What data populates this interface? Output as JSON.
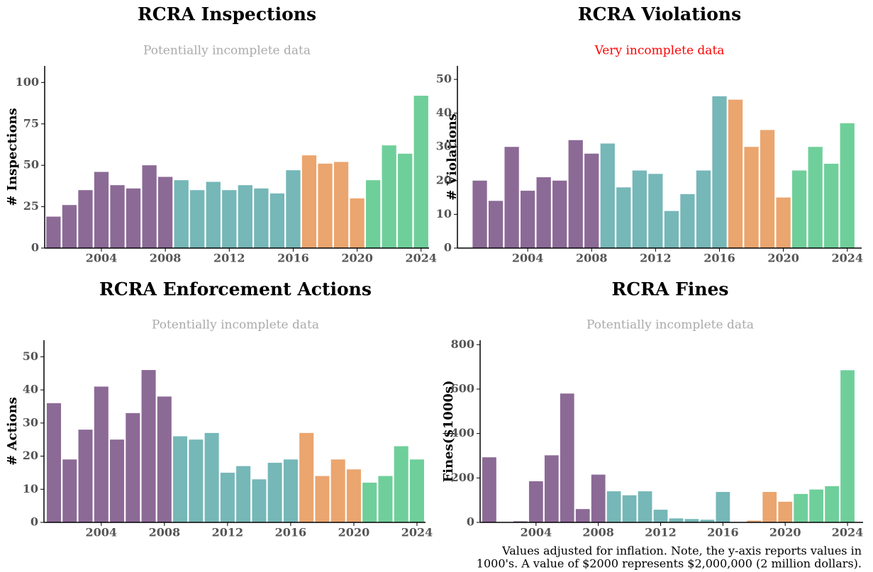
{
  "chart_data": [
    {
      "type": "bar",
      "title": "RCRA Inspections",
      "subtitle": "Potentially incomplete data",
      "subtitle_color": "#aaaaaa",
      "ylabel": "# Inspections",
      "x": [
        2001,
        2002,
        2003,
        2004,
        2005,
        2006,
        2007,
        2008,
        2009,
        2010,
        2011,
        2012,
        2013,
        2014,
        2015,
        2016,
        2017,
        2018,
        2019,
        2020,
        2021,
        2022,
        2023,
        2024
      ],
      "values": [
        19,
        26,
        35,
        46,
        38,
        36,
        50,
        43,
        41,
        35,
        40,
        35,
        38,
        36,
        33,
        47,
        56,
        51,
        52,
        30,
        41,
        62,
        57,
        92
      ],
      "colors": [
        "#8c6a96",
        "#8c6a96",
        "#8c6a96",
        "#8c6a96",
        "#8c6a96",
        "#8c6a96",
        "#8c6a96",
        "#8c6a96",
        "#76b7b8",
        "#76b7b8",
        "#76b7b8",
        "#76b7b8",
        "#76b7b8",
        "#76b7b8",
        "#76b7b8",
        "#76b7b8",
        "#eba56e",
        "#eba56e",
        "#eba56e",
        "#eba56e",
        "#6fcf9a",
        "#6fcf9a",
        "#6fcf9a",
        "#6fcf9a"
      ],
      "xlim": [
        2000.45,
        2024.5
      ],
      "xticks": [
        2004,
        2008,
        2012,
        2016,
        2020,
        2024
      ],
      "ylim": [
        0,
        110
      ],
      "yticks": [
        0,
        25,
        50,
        75,
        100
      ]
    },
    {
      "type": "bar",
      "title": "RCRA Violations",
      "subtitle": "Very incomplete data",
      "subtitle_color": "#ff0000",
      "ylabel": "# Violations",
      "x": [
        2001,
        2002,
        2003,
        2004,
        2005,
        2006,
        2007,
        2008,
        2009,
        2010,
        2011,
        2012,
        2013,
        2014,
        2015,
        2016,
        2017,
        2018,
        2019,
        2020,
        2021,
        2022,
        2023,
        2024
      ],
      "values": [
        20,
        14,
        30,
        17,
        21,
        20,
        32,
        28,
        31,
        18,
        23,
        22,
        11,
        16,
        23,
        45,
        44,
        30,
        35,
        15,
        23,
        30,
        25,
        37
      ],
      "colors": [
        "#8c6a96",
        "#8c6a96",
        "#8c6a96",
        "#8c6a96",
        "#8c6a96",
        "#8c6a96",
        "#8c6a96",
        "#8c6a96",
        "#76b7b8",
        "#76b7b8",
        "#76b7b8",
        "#76b7b8",
        "#76b7b8",
        "#76b7b8",
        "#76b7b8",
        "#76b7b8",
        "#eba56e",
        "#eba56e",
        "#eba56e",
        "#eba56e",
        "#6fcf9a",
        "#6fcf9a",
        "#6fcf9a",
        "#6fcf9a"
      ],
      "xlim": [
        1999.6,
        2024.9
      ],
      "xticks": [
        2004,
        2008,
        2012,
        2016,
        2020,
        2024
      ],
      "ylim": [
        0,
        54
      ],
      "yticks": [
        0,
        10,
        20,
        30,
        40,
        50
      ]
    },
    {
      "type": "bar",
      "title": "RCRA Enforcement Actions",
      "subtitle": "Potentially incomplete data",
      "subtitle_color": "#aaaaaa",
      "ylabel": "# Actions",
      "x": [
        2001,
        2002,
        2003,
        2004,
        2005,
        2006,
        2007,
        2008,
        2009,
        2010,
        2011,
        2012,
        2013,
        2014,
        2015,
        2016,
        2017,
        2018,
        2019,
        2020,
        2021,
        2022,
        2023,
        2024
      ],
      "values": [
        36,
        19,
        28,
        41,
        25,
        33,
        46,
        38,
        26,
        25,
        27,
        15,
        17,
        13,
        18,
        19,
        27,
        14,
        19,
        16,
        12,
        14,
        23,
        19
      ],
      "colors": [
        "#8c6a96",
        "#8c6a96",
        "#8c6a96",
        "#8c6a96",
        "#8c6a96",
        "#8c6a96",
        "#8c6a96",
        "#8c6a96",
        "#76b7b8",
        "#76b7b8",
        "#76b7b8",
        "#76b7b8",
        "#76b7b8",
        "#76b7b8",
        "#76b7b8",
        "#76b7b8",
        "#eba56e",
        "#eba56e",
        "#eba56e",
        "#eba56e",
        "#6fcf9a",
        "#6fcf9a",
        "#6fcf9a",
        "#6fcf9a"
      ],
      "xlim": [
        2000.37,
        2024.54
      ],
      "xticks": [
        2004,
        2008,
        2012,
        2016,
        2020,
        2024
      ],
      "ylim": [
        0,
        55
      ],
      "yticks": [
        0,
        10,
        20,
        30,
        40,
        50
      ]
    },
    {
      "type": "bar",
      "title": "RCRA Fines",
      "subtitle": "Potentially incomplete data",
      "subtitle_color": "#aaaaaa",
      "ylabel": "Fines($1000s)",
      "x": [
        2001,
        2002,
        2003,
        2004,
        2005,
        2006,
        2007,
        2008,
        2009,
        2010,
        2011,
        2012,
        2013,
        2014,
        2015,
        2016,
        2017,
        2018,
        2019,
        2020,
        2021,
        2022,
        2023,
        2024
      ],
      "values": [
        293,
        0,
        5,
        185,
        302,
        580,
        60,
        215,
        140,
        122,
        140,
        57,
        18,
        15,
        12,
        137,
        0,
        8,
        137,
        93,
        128,
        148,
        163,
        685
      ],
      "colors": [
        "#8c6a96",
        "#8c6a96",
        "#8c6a96",
        "#8c6a96",
        "#8c6a96",
        "#8c6a96",
        "#8c6a96",
        "#8c6a96",
        "#76b7b8",
        "#76b7b8",
        "#76b7b8",
        "#76b7b8",
        "#76b7b8",
        "#76b7b8",
        "#76b7b8",
        "#76b7b8",
        "#eba56e",
        "#eba56e",
        "#eba56e",
        "#eba56e",
        "#6fcf9a",
        "#6fcf9a",
        "#6fcf9a",
        "#6fcf9a"
      ],
      "xlim": [
        2000.41,
        2025.0
      ],
      "xticks": [
        2004,
        2008,
        2012,
        2016,
        2020,
        2024
      ],
      "ylim": [
        0,
        820
      ],
      "yticks": [
        0,
        200,
        400,
        600,
        800
      ],
      "note": [
        "Values adjusted for inflation. Note, the y-axis reports values in",
        "1000's. A value of $2000 represents $2,000,000 (2 million dollars)."
      ]
    }
  ]
}
